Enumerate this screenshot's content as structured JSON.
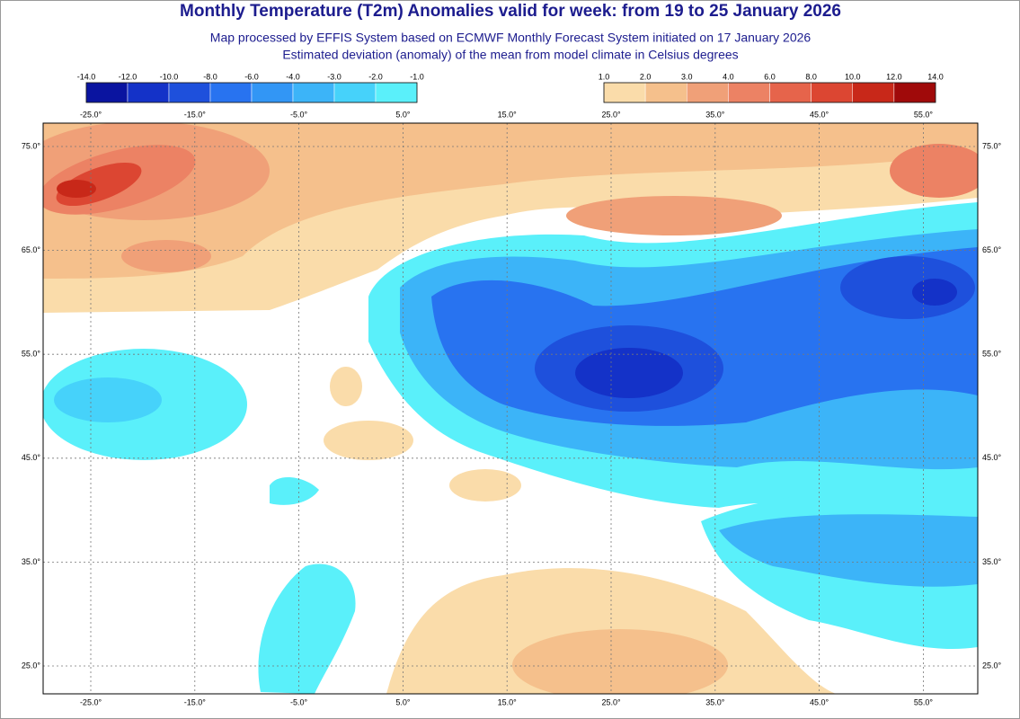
{
  "header": {
    "title": "Monthly Temperature (T2m) Anomalies valid for week: from 19 to 25 January 2026",
    "subtitle": "Map processed by EFFIS System based on ECMWF Monthly Forecast System initiated on 17 January 2026",
    "note": "Estimated deviation (anomaly) of the mean from model climate in Celsius degrees"
  },
  "legend_cold": {
    "labels": [
      "-14.0",
      "-12.0",
      "-10.0",
      "-8.0",
      "-6.0",
      "-4.0",
      "-3.0",
      "-2.0",
      "-1.0"
    ],
    "colors": [
      "#0a14a0",
      "#1432c8",
      "#1e50dc",
      "#2873f0",
      "#3296f5",
      "#3cb4f8",
      "#46d2fa",
      "#5af0fa"
    ]
  },
  "legend_warm": {
    "labels": [
      "1.0",
      "2.0",
      "3.0",
      "4.0",
      "6.0",
      "8.0",
      "10.0",
      "12.0",
      "14.0"
    ],
    "colors": [
      "#fadcaa",
      "#f5c08c",
      "#f0a078",
      "#ec8264",
      "#e6644b",
      "#dc4632",
      "#c82819",
      "#a00a0a"
    ]
  },
  "map": {
    "lon_labels_top": [
      "-25.0°",
      "-15.0°",
      "-5.0°",
      "5.0°",
      "15.0°",
      "25.0°",
      "35.0°",
      "45.0°",
      "55.0°"
    ],
    "lon_labels_bottom": [
      "-25.0°",
      "-15.0°",
      "-5.0°",
      "5.0°",
      "15.0°",
      "25.0°",
      "35.0°",
      "45.0°",
      "55.0°"
    ],
    "lat_labels_left": [
      "75.0°",
      "65.0°",
      "55.0°",
      "45.0°",
      "35.0°",
      "25.0°"
    ],
    "lat_labels_right": [
      "75.0°",
      "65.0°",
      "55.0°",
      "45.0°",
      "35.0°",
      "25.0°"
    ]
  }
}
